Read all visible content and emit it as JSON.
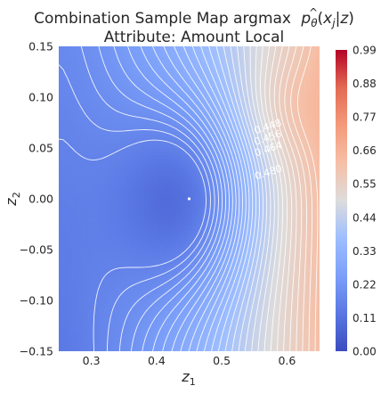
{
  "chart_data": {
    "type": "heatmap",
    "title_line1": "Combination Sample Map argmax",
    "title_math": {
      "p": "p",
      "sub": "θ",
      "open": "(",
      "x": "x",
      "hat": "^",
      "xsub": "j",
      "bar": "|",
      "z": "z",
      "close": ")"
    },
    "title_line2": "Attribute: Amount Local",
    "xlabel": {
      "base": "z",
      "sub": "1"
    },
    "ylabel": {
      "base": "z",
      "sub": "2"
    },
    "xlim": [
      0.25,
      0.65
    ],
    "ylim": [
      -0.15,
      0.15
    ],
    "x_ticks": [
      "0.3",
      "0.4",
      "0.5",
      "0.6"
    ],
    "x_tick_values": [
      0.3,
      0.4,
      0.5,
      0.6
    ],
    "y_ticks": [
      "−0.15",
      "−0.10",
      "−0.05",
      "0.00",
      "0.05",
      "0.10",
      "0.15"
    ],
    "y_tick_values": [
      -0.15,
      -0.1,
      -0.05,
      0.0,
      0.05,
      0.1,
      0.15
    ],
    "colorbar": {
      "colormap": "coolwarm",
      "range": [
        0.0,
        0.99
      ],
      "ticks": [
        "0.00",
        "0.11",
        "0.22",
        "0.33",
        "0.44",
        "0.55",
        "0.66",
        "0.77",
        "0.88",
        "0.99"
      ],
      "tick_values": [
        0.0,
        0.11,
        0.22,
        0.33,
        0.44,
        0.55,
        0.66,
        0.77,
        0.88,
        0.99
      ]
    },
    "contour_labels": [
      {
        "text": "0.448",
        "x": 0.572,
        "y": 0.068
      },
      {
        "text": "0.456",
        "x": 0.572,
        "y": 0.057
      },
      {
        "text": "0.464",
        "x": 0.573,
        "y": 0.046
      },
      {
        "text": "0.480",
        "x": 0.573,
        "y": 0.023
      }
    ],
    "field": {
      "minimum": {
        "x": 0.45,
        "y": 0.0,
        "value": 0.17
      },
      "max_corner_value": 0.62,
      "min_corner_value": 0.13,
      "contour_color": "#ffffff"
    },
    "grid": false
  }
}
